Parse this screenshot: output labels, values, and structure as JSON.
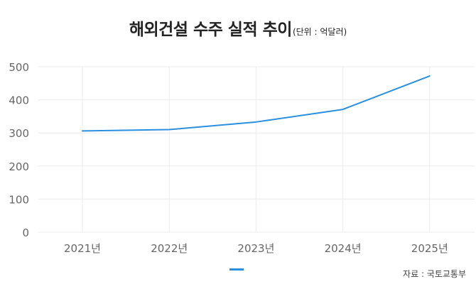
{
  "title": "해외건설 수주 실적 추이",
  "unit_label": "(단위 : 억달러)",
  "source": "자료 : 국토교통부",
  "colors": {
    "line": "#2b8fe0",
    "grid": "#ececec",
    "tick_text": "#666666"
  },
  "chart_data": {
    "type": "line",
    "title": "해외건설 수주 실적 추이",
    "unit": "(단위 : 억달러)",
    "categories": [
      "2021년",
      "2022년",
      "2023년",
      "2024년",
      "2025년"
    ],
    "series": [
      {
        "values": [
          306,
          310,
          333,
          371,
          472
        ]
      }
    ],
    "ylim": [
      0,
      500
    ],
    "yticks": [
      0,
      100,
      200,
      300,
      400,
      500
    ],
    "grid": true,
    "legend": "bottom-center"
  }
}
